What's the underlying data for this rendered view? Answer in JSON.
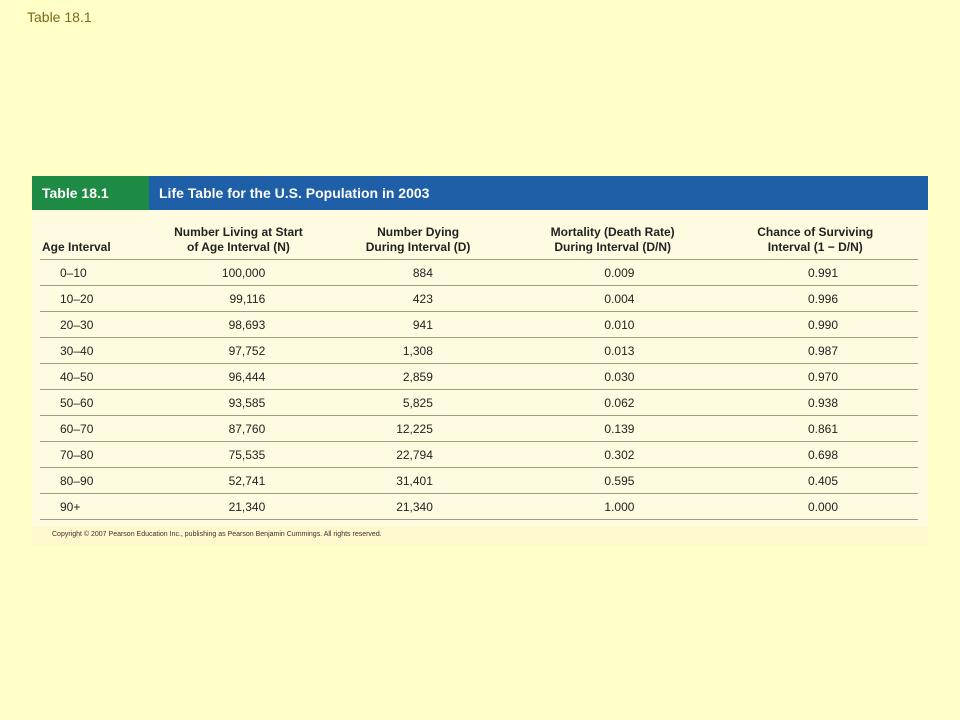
{
  "slide_title": "Table 18.1",
  "banner": {
    "label": "Table 18.1",
    "title": "Life Table for the U.S. Population in 2003",
    "colors": {
      "label_bg": "#1E8B45",
      "title_bg": "#1F5FA8"
    }
  },
  "table": {
    "headers": [
      {
        "line1": "",
        "line2": "Age Interval"
      },
      {
        "line1": "Number Living at Start",
        "line2": "of Age Interval (N)"
      },
      {
        "line1": "Number Dying",
        "line2": "During Interval (D)"
      },
      {
        "line1": "Mortality (Death Rate)",
        "line2": "During Interval (D/N)"
      },
      {
        "line1": "Chance of Surviving",
        "line2": "Interval (1 − D/N)"
      }
    ],
    "rows": [
      [
        "0–10",
        "100,000",
        "884",
        "0.009",
        "0.991"
      ],
      [
        "10–20",
        "99,116",
        "423",
        "0.004",
        "0.996"
      ],
      [
        "20–30",
        "98,693",
        "941",
        "0.010",
        "0.990"
      ],
      [
        "30–40",
        "97,752",
        "1,308",
        "0.013",
        "0.987"
      ],
      [
        "40–50",
        "96,444",
        "2,859",
        "0.030",
        "0.970"
      ],
      [
        "50–60",
        "93,585",
        "5,825",
        "0.062",
        "0.938"
      ],
      [
        "60–70",
        "87,760",
        "12,225",
        "0.139",
        "0.861"
      ],
      [
        "70–80",
        "75,535",
        "22,794",
        "0.302",
        "0.698"
      ],
      [
        "80–90",
        "52,741",
        "31,401",
        "0.595",
        "0.405"
      ],
      [
        "90+",
        "21,340",
        "21,340",
        "1.000",
        "0.000"
      ]
    ]
  },
  "copyright": "Copyright © 2007 Pearson Education Inc., publishing as Pearson Benjamin Cummings. All rights reserved."
}
